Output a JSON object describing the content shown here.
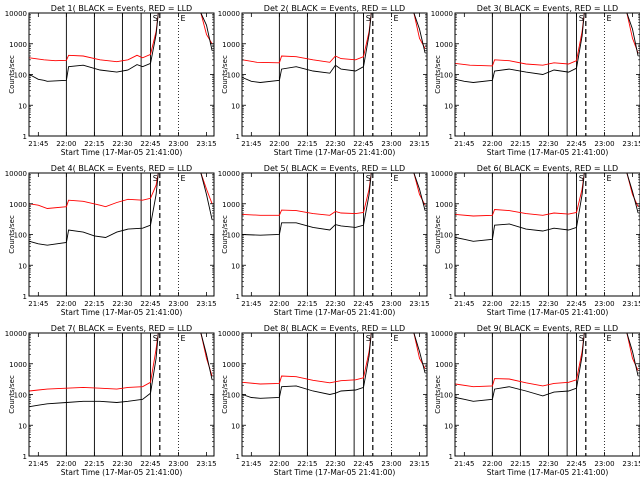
{
  "chart_data": {
    "type": "line",
    "x_ticks": [
      "21:45",
      "22:00",
      "22:15",
      "22:30",
      "22:45",
      "23:00",
      "23:15"
    ],
    "y_ticks": [
      "1",
      "10",
      "100",
      "1000",
      "10000"
    ],
    "y_scale": "log",
    "ylim": [
      1,
      10000
    ],
    "ylabel": "Counts/sec",
    "xlabel": "Start Time (17-Mar-05 21:41:00)",
    "colors": {
      "events": "#000000",
      "lld": "#ff0000",
      "markers": "#000000"
    },
    "solid_marker_times": [
      "22:00",
      "22:15",
      "22:30",
      "22:40",
      "22:45"
    ],
    "dashed_marker_time": "22:50",
    "dotted_marker_time": "23:00",
    "marker_letters": [
      "S",
      "E"
    ],
    "panels": [
      {
        "title": "Det 1( BLACK = Events, RED = LLD",
        "events": [
          [
            21.67,
            100
          ],
          [
            21.75,
            70
          ],
          [
            21.8,
            65
          ],
          [
            21.83,
            60
          ],
          [
            22.0,
            65
          ],
          [
            22.02,
            180
          ],
          [
            22.15,
            200
          ],
          [
            22.3,
            140
          ],
          [
            22.45,
            120
          ],
          [
            22.55,
            140
          ],
          [
            22.63,
            210
          ],
          [
            22.68,
            180
          ],
          [
            22.75,
            230
          ],
          [
            22.8,
            2000
          ],
          [
            22.82,
            10000
          ],
          [
            22.85,
            10000
          ],
          [
            23.2,
            10000
          ],
          [
            23.25,
            4000
          ],
          [
            23.3,
            600
          ]
        ],
        "lld": [
          [
            21.67,
            350
          ],
          [
            21.8,
            300
          ],
          [
            21.9,
            280
          ],
          [
            22.0,
            290
          ],
          [
            22.02,
            420
          ],
          [
            22.15,
            400
          ],
          [
            22.3,
            300
          ],
          [
            22.45,
            260
          ],
          [
            22.55,
            300
          ],
          [
            22.63,
            420
          ],
          [
            22.68,
            350
          ],
          [
            22.75,
            450
          ],
          [
            22.8,
            2500
          ],
          [
            22.82,
            10000
          ],
          [
            22.85,
            10000
          ],
          [
            23.2,
            10000
          ],
          [
            23.25,
            2000
          ],
          [
            23.3,
            1000
          ]
        ]
      },
      {
        "title": "Det 2( BLACK = Events, RED = LLD",
        "events": [
          [
            21.67,
            80
          ],
          [
            21.75,
            60
          ],
          [
            21.83,
            55
          ],
          [
            22.0,
            65
          ],
          [
            22.02,
            150
          ],
          [
            22.15,
            180
          ],
          [
            22.3,
            130
          ],
          [
            22.45,
            110
          ],
          [
            22.5,
            200
          ],
          [
            22.55,
            150
          ],
          [
            22.68,
            130
          ],
          [
            22.75,
            180
          ],
          [
            22.8,
            2000
          ],
          [
            22.82,
            10000
          ],
          [
            23.2,
            10000
          ],
          [
            23.25,
            3000
          ],
          [
            23.3,
            500
          ]
        ],
        "lld": [
          [
            21.67,
            300
          ],
          [
            21.8,
            250
          ],
          [
            22.0,
            240
          ],
          [
            22.02,
            400
          ],
          [
            22.15,
            380
          ],
          [
            22.3,
            300
          ],
          [
            22.45,
            250
          ],
          [
            22.5,
            400
          ],
          [
            22.55,
            330
          ],
          [
            22.68,
            300
          ],
          [
            22.75,
            380
          ],
          [
            22.8,
            2500
          ],
          [
            22.82,
            10000
          ],
          [
            23.2,
            10000
          ],
          [
            23.25,
            1500
          ],
          [
            23.3,
            700
          ]
        ]
      },
      {
        "title": "Det 3( BLACK = Events, RED = LLD",
        "events": [
          [
            21.67,
            70
          ],
          [
            21.75,
            60
          ],
          [
            21.83,
            55
          ],
          [
            22.0,
            65
          ],
          [
            22.02,
            130
          ],
          [
            22.15,
            150
          ],
          [
            22.3,
            120
          ],
          [
            22.45,
            100
          ],
          [
            22.55,
            140
          ],
          [
            22.68,
            120
          ],
          [
            22.75,
            160
          ],
          [
            22.8,
            1800
          ],
          [
            22.82,
            10000
          ],
          [
            23.2,
            10000
          ],
          [
            23.25,
            3000
          ],
          [
            23.3,
            400
          ]
        ],
        "lld": [
          [
            21.67,
            230
          ],
          [
            21.8,
            200
          ],
          [
            22.0,
            190
          ],
          [
            22.02,
            300
          ],
          [
            22.15,
            280
          ],
          [
            22.3,
            220
          ],
          [
            22.45,
            200
          ],
          [
            22.55,
            240
          ],
          [
            22.68,
            220
          ],
          [
            22.75,
            280
          ],
          [
            22.8,
            2500
          ],
          [
            22.82,
            10000
          ],
          [
            23.2,
            10000
          ],
          [
            23.25,
            1500
          ],
          [
            23.3,
            500
          ]
        ]
      },
      {
        "title": "Det 4( BLACK = Events, RED = LLD",
        "events": [
          [
            21.67,
            60
          ],
          [
            21.75,
            50
          ],
          [
            21.83,
            45
          ],
          [
            22.0,
            55
          ],
          [
            22.02,
            140
          ],
          [
            22.15,
            120
          ],
          [
            22.25,
            90
          ],
          [
            22.35,
            80
          ],
          [
            22.45,
            120
          ],
          [
            22.55,
            150
          ],
          [
            22.68,
            160
          ],
          [
            22.75,
            200
          ],
          [
            22.8,
            2000
          ],
          [
            22.82,
            10000
          ],
          [
            23.2,
            10000
          ],
          [
            23.25,
            2000
          ],
          [
            23.3,
            300
          ]
        ],
        "lld": [
          [
            21.67,
            1000
          ],
          [
            21.75,
            900
          ],
          [
            21.83,
            700
          ],
          [
            22.0,
            800
          ],
          [
            22.02,
            1300
          ],
          [
            22.15,
            1200
          ],
          [
            22.3,
            900
          ],
          [
            22.35,
            800
          ],
          [
            22.45,
            1100
          ],
          [
            22.55,
            1400
          ],
          [
            22.68,
            1300
          ],
          [
            22.75,
            1500
          ],
          [
            22.8,
            4000
          ],
          [
            22.82,
            10000
          ],
          [
            23.2,
            10000
          ],
          [
            23.25,
            3000
          ],
          [
            23.3,
            1000
          ]
        ]
      },
      {
        "title": "Det 5( BLACK = Events, RED = LLD",
        "events": [
          [
            21.67,
            100
          ],
          [
            21.83,
            95
          ],
          [
            22.0,
            100
          ],
          [
            22.02,
            240
          ],
          [
            22.15,
            240
          ],
          [
            22.3,
            170
          ],
          [
            22.45,
            140
          ],
          [
            22.5,
            210
          ],
          [
            22.55,
            190
          ],
          [
            22.68,
            170
          ],
          [
            22.75,
            200
          ],
          [
            22.8,
            2000
          ],
          [
            22.82,
            10000
          ],
          [
            23.2,
            10000
          ],
          [
            23.25,
            3000
          ],
          [
            23.3,
            600
          ]
        ],
        "lld": [
          [
            21.67,
            450
          ],
          [
            21.83,
            420
          ],
          [
            22.0,
            420
          ],
          [
            22.02,
            620
          ],
          [
            22.15,
            600
          ],
          [
            22.3,
            480
          ],
          [
            22.45,
            420
          ],
          [
            22.5,
            560
          ],
          [
            22.55,
            500
          ],
          [
            22.68,
            480
          ],
          [
            22.75,
            520
          ],
          [
            22.8,
            3000
          ],
          [
            22.82,
            10000
          ],
          [
            23.2,
            10000
          ],
          [
            23.25,
            2000
          ],
          [
            23.3,
            900
          ]
        ]
      },
      {
        "title": "Det 6( BLACK = Events, RED = LLD",
        "events": [
          [
            21.67,
            80
          ],
          [
            21.75,
            70
          ],
          [
            21.83,
            60
          ],
          [
            22.0,
            70
          ],
          [
            22.02,
            200
          ],
          [
            22.15,
            220
          ],
          [
            22.3,
            150
          ],
          [
            22.45,
            130
          ],
          [
            22.55,
            160
          ],
          [
            22.68,
            140
          ],
          [
            22.75,
            170
          ],
          [
            22.8,
            2000
          ],
          [
            22.82,
            10000
          ],
          [
            23.2,
            10000
          ],
          [
            23.25,
            2500
          ],
          [
            23.3,
            500
          ]
        ],
        "lld": [
          [
            21.67,
            450
          ],
          [
            21.83,
            400
          ],
          [
            22.0,
            420
          ],
          [
            22.02,
            650
          ],
          [
            22.15,
            600
          ],
          [
            22.3,
            480
          ],
          [
            22.45,
            420
          ],
          [
            22.55,
            500
          ],
          [
            22.68,
            460
          ],
          [
            22.75,
            520
          ],
          [
            22.8,
            3000
          ],
          [
            22.82,
            10000
          ],
          [
            23.2,
            10000
          ],
          [
            23.25,
            2000
          ],
          [
            23.3,
            800
          ]
        ]
      },
      {
        "title": "Det 7( BLACK = Events, RED = LLD",
        "events": [
          [
            21.67,
            40
          ],
          [
            21.75,
            45
          ],
          [
            21.83,
            50
          ],
          [
            22.0,
            55
          ],
          [
            22.15,
            60
          ],
          [
            22.3,
            60
          ],
          [
            22.45,
            55
          ],
          [
            22.55,
            60
          ],
          [
            22.68,
            70
          ],
          [
            22.75,
            110
          ],
          [
            22.8,
            1500
          ],
          [
            22.82,
            10000
          ],
          [
            23.2,
            10000
          ],
          [
            23.25,
            2000
          ],
          [
            23.3,
            300
          ]
        ],
        "lld": [
          [
            21.67,
            130
          ],
          [
            21.75,
            140
          ],
          [
            21.83,
            150
          ],
          [
            22.0,
            160
          ],
          [
            22.15,
            170
          ],
          [
            22.3,
            160
          ],
          [
            22.45,
            150
          ],
          [
            22.55,
            170
          ],
          [
            22.68,
            180
          ],
          [
            22.75,
            250
          ],
          [
            22.8,
            3000
          ],
          [
            22.82,
            10000
          ],
          [
            23.2,
            10000
          ],
          [
            23.25,
            1500
          ],
          [
            23.3,
            400
          ]
        ]
      },
      {
        "title": "Det 8( BLACK = Events, RED = LLD",
        "events": [
          [
            21.67,
            100
          ],
          [
            21.75,
            80
          ],
          [
            21.83,
            75
          ],
          [
            22.0,
            80
          ],
          [
            22.02,
            180
          ],
          [
            22.15,
            190
          ],
          [
            22.3,
            130
          ],
          [
            22.45,
            100
          ],
          [
            22.5,
            110
          ],
          [
            22.55,
            130
          ],
          [
            22.68,
            140
          ],
          [
            22.75,
            170
          ],
          [
            22.8,
            1800
          ],
          [
            22.82,
            10000
          ],
          [
            23.2,
            10000
          ],
          [
            23.25,
            2500
          ],
          [
            23.3,
            500
          ]
        ],
        "lld": [
          [
            21.67,
            250
          ],
          [
            21.83,
            220
          ],
          [
            22.0,
            230
          ],
          [
            22.02,
            400
          ],
          [
            22.15,
            380
          ],
          [
            22.3,
            290
          ],
          [
            22.45,
            240
          ],
          [
            22.55,
            280
          ],
          [
            22.68,
            300
          ],
          [
            22.75,
            350
          ],
          [
            22.8,
            2500
          ],
          [
            22.82,
            10000
          ],
          [
            23.2,
            10000
          ],
          [
            23.25,
            1500
          ],
          [
            23.3,
            700
          ]
        ]
      },
      {
        "title": "Det 9( BLACK = Events, RED = LLD",
        "events": [
          [
            21.67,
            80
          ],
          [
            21.75,
            70
          ],
          [
            21.83,
            60
          ],
          [
            22.0,
            70
          ],
          [
            22.02,
            150
          ],
          [
            22.15,
            180
          ],
          [
            22.3,
            130
          ],
          [
            22.45,
            90
          ],
          [
            22.55,
            120
          ],
          [
            22.68,
            130
          ],
          [
            22.75,
            160
          ],
          [
            22.8,
            1800
          ],
          [
            22.82,
            10000
          ],
          [
            23.2,
            10000
          ],
          [
            23.25,
            2500
          ],
          [
            23.3,
            400
          ]
        ],
        "lld": [
          [
            21.67,
            220
          ],
          [
            21.83,
            180
          ],
          [
            22.0,
            190
          ],
          [
            22.02,
            330
          ],
          [
            22.15,
            320
          ],
          [
            22.3,
            240
          ],
          [
            22.45,
            190
          ],
          [
            22.55,
            230
          ],
          [
            22.68,
            250
          ],
          [
            22.75,
            300
          ],
          [
            22.8,
            2500
          ],
          [
            22.82,
            10000
          ],
          [
            23.2,
            10000
          ],
          [
            23.25,
            1500
          ],
          [
            23.3,
            600
          ]
        ]
      }
    ]
  }
}
